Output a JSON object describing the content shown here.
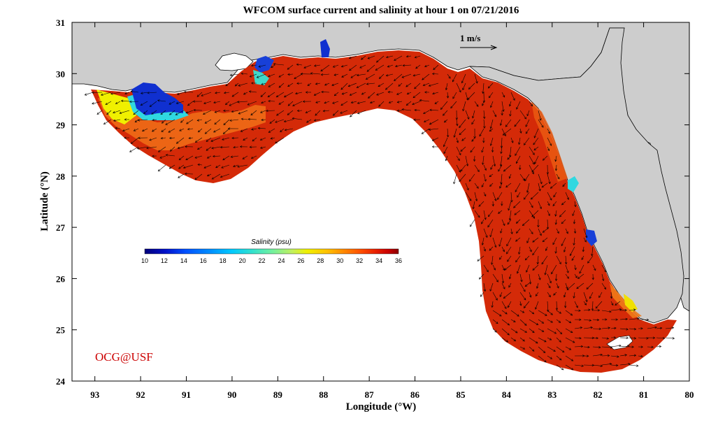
{
  "title": "WFCOM surface current and salinity at hour 1 on 07/21/2016",
  "x_axis": {
    "label": "Longitude (°W)",
    "ticks": [
      "93",
      "92",
      "91",
      "90",
      "89",
      "88",
      "87",
      "86",
      "85",
      "84",
      "83",
      "82",
      "81",
      "80"
    ],
    "range": [
      93.5,
      80
    ]
  },
  "y_axis": {
    "label": "Latitude (°N)",
    "ticks": [
      "24",
      "25",
      "26",
      "27",
      "28",
      "29",
      "30",
      "31"
    ],
    "range": [
      24,
      31
    ]
  },
  "colorbar": {
    "title": "Salinity (psu)",
    "ticks": [
      "10",
      "12",
      "14",
      "16",
      "18",
      "20",
      "22",
      "24",
      "26",
      "28",
      "30",
      "32",
      "34",
      "36"
    ],
    "range": [
      10,
      36
    ],
    "colors": [
      "#00007a",
      "#0010c8",
      "#0050ff",
      "#0090ff",
      "#00c8ff",
      "#30e0d0",
      "#70f0a0",
      "#c0f060",
      "#f0f000",
      "#ffc000",
      "#ff8c00",
      "#ff5000",
      "#e82000",
      "#c80000",
      "#8c0000"
    ]
  },
  "scale_vector": {
    "label": "1 m/s"
  },
  "credit": {
    "text": "OCG@USF",
    "color": "#cc0000"
  },
  "colors": {
    "land": "#cdcdcd",
    "ocean_bg": "#ffffff",
    "high_salinity": "#d42a08",
    "mid_salinity": "#e85a10",
    "low_salinity": "#1030d0",
    "vector": "#000000"
  }
}
